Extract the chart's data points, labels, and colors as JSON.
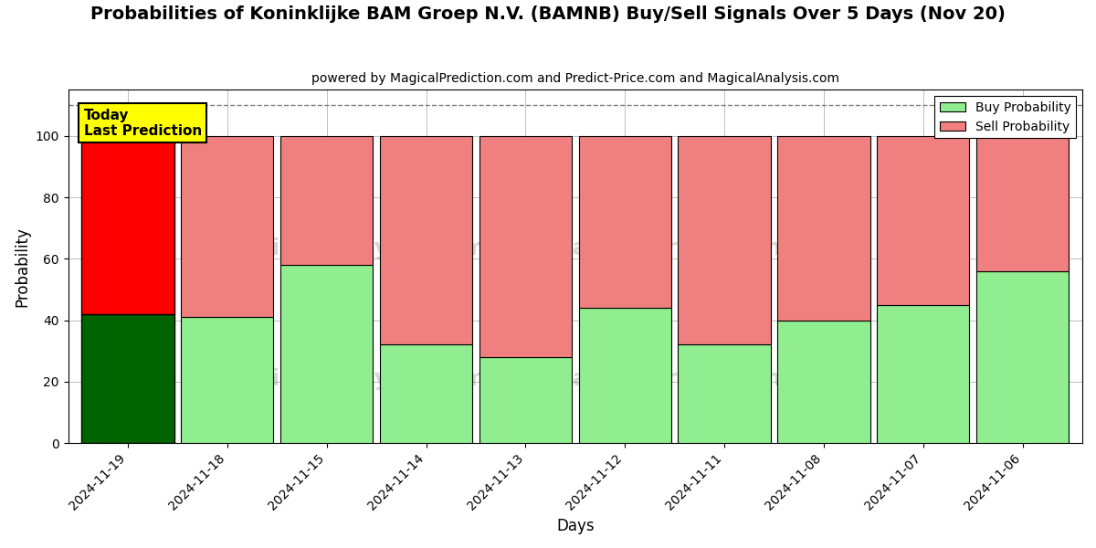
{
  "title": "Probabilities of Koninklijke BAM Groep N.V. (BAMNB) Buy/Sell Signals Over 5 Days (Nov 20)",
  "subtitle": "powered by MagicalPrediction.com and Predict-Price.com and MagicalAnalysis.com",
  "xlabel": "Days",
  "ylabel": "Probability",
  "categories": [
    "2024-11-19",
    "2024-11-18",
    "2024-11-15",
    "2024-11-14",
    "2024-11-13",
    "2024-11-12",
    "2024-11-11",
    "2024-11-08",
    "2024-11-07",
    "2024-11-06"
  ],
  "buy_values": [
    42,
    41,
    58,
    32,
    28,
    44,
    32,
    40,
    45,
    56
  ],
  "sell_values": [
    58,
    59,
    42,
    68,
    72,
    56,
    68,
    60,
    55,
    44
  ],
  "today_buy_color": "#006400",
  "today_sell_color": "#ff0000",
  "buy_color": "#90EE90",
  "sell_color": "#F08080",
  "today_annotation": "Today\nLast Prediction",
  "today_annotation_bg": "#ffff00",
  "dashed_line_y": 110,
  "ylim": [
    0,
    115
  ],
  "yticks": [
    0,
    20,
    40,
    60,
    80,
    100
  ],
  "legend_buy_label": "Buy Probability",
  "legend_sell_label": "Sell Probability",
  "bar_width": 0.93,
  "figsize": [
    12,
    6
  ],
  "dpi": 100
}
